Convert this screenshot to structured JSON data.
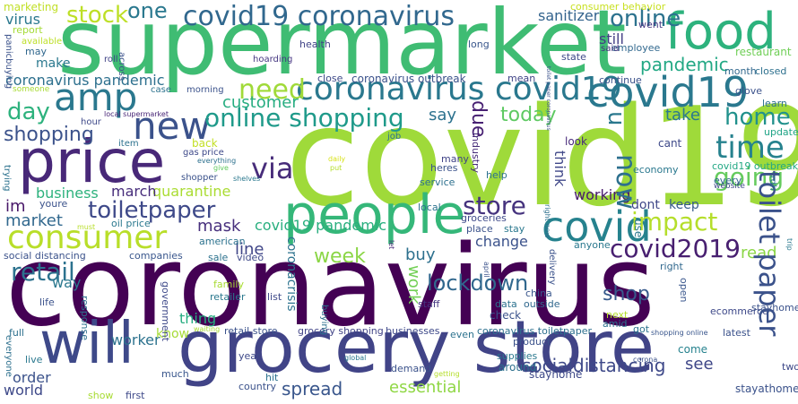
{
  "words": [
    {
      "text": "supermarket",
      "color": "#3fbc73"
    },
    {
      "text": "covid19",
      "color": "#9fda3a"
    },
    {
      "text": "coronavirus",
      "color": "#440154"
    },
    {
      "text": "grocery store",
      "color": "#414487"
    },
    {
      "text": "people",
      "color": "#35b779"
    },
    {
      "text": "price",
      "color": "#482878"
    },
    {
      "text": "food",
      "color": "#2db27d"
    },
    {
      "text": "will",
      "color": "#3e4989"
    },
    {
      "text": "coronavirus covid19",
      "color": "#2a788e"
    },
    {
      "text": "consumer",
      "color": "#b8de29"
    },
    {
      "text": "covid19 coronavirus",
      "color": "#31688e"
    },
    {
      "text": "amp",
      "color": "#2a788e"
    },
    {
      "text": "new",
      "color": "#3b528b"
    },
    {
      "text": "covid",
      "color": "#26828e"
    },
    {
      "text": "online shopping",
      "color": "#1f9a8a"
    },
    {
      "text": "need",
      "color": "#a0da39"
    },
    {
      "text": "stock",
      "color": "#bddf26"
    },
    {
      "text": "online",
      "color": "#2c728e"
    },
    {
      "text": "toilet paper",
      "color": "#3b528b"
    },
    {
      "text": "covid2019",
      "color": "#481f70"
    },
    {
      "text": "time",
      "color": "#26828e"
    },
    {
      "text": "home",
      "color": "#21918c"
    },
    {
      "text": "going",
      "color": "#65cb5e"
    },
    {
      "text": "store",
      "color": "#46337e"
    },
    {
      "text": "retail",
      "color": "#2c728e"
    },
    {
      "text": "toiletpaper",
      "color": "#3e4989"
    },
    {
      "text": "now",
      "color": "#2d708e"
    },
    {
      "text": "via",
      "color": "#472c7a"
    },
    {
      "text": "impact",
      "color": "#b5de2b"
    },
    {
      "text": "u",
      "color": "#2a788e"
    },
    {
      "text": "due",
      "color": "#482173"
    },
    {
      "text": "day",
      "color": "#2db27d"
    },
    {
      "text": "shopping",
      "color": "#3b528b"
    },
    {
      "text": "one",
      "color": "#2a788e"
    },
    {
      "text": "pandemic",
      "color": "#22a884"
    },
    {
      "text": "customer",
      "color": "#27ad81"
    },
    {
      "text": "today",
      "color": "#5ec962"
    },
    {
      "text": "work",
      "color": "#73d056"
    },
    {
      "text": "lockdown",
      "color": "#31688e"
    },
    {
      "text": "week",
      "color": "#8bd646"
    },
    {
      "text": "shop",
      "color": "#375a8c"
    },
    {
      "text": "spread",
      "color": "#39568c"
    },
    {
      "text": "socialdistancing",
      "color": "#3e4989"
    },
    {
      "text": "covid19 pandemic",
      "color": "#29af7f"
    },
    {
      "text": "quarantine",
      "color": "#aadc32"
    },
    {
      "text": "market",
      "color": "#31688e"
    },
    {
      "text": "mask",
      "color": "#472f7d"
    },
    {
      "text": "line",
      "color": "#404688"
    },
    {
      "text": "business",
      "color": "#2db27d"
    },
    {
      "text": "march",
      "color": "#472d7b"
    },
    {
      "text": "im",
      "color": "#481769"
    },
    {
      "text": "coronavirus pandemic",
      "color": "#2d708e"
    },
    {
      "text": "virus",
      "color": "#2a788e"
    },
    {
      "text": "sanitizer",
      "color": "#33638d"
    },
    {
      "text": "say",
      "color": "#2c728e"
    },
    {
      "text": "take",
      "color": "#2a788e"
    },
    {
      "text": "still",
      "color": "#433e85"
    },
    {
      "text": "make",
      "color": "#2a788e"
    },
    {
      "text": "coronavirus outbreak",
      "color": "#3b528b"
    },
    {
      "text": "essential",
      "color": "#8fd744"
    },
    {
      "text": "read",
      "color": "#8bd646"
    },
    {
      "text": "see",
      "color": "#3f4788"
    },
    {
      "text": "buy",
      "color": "#2d708e"
    },
    {
      "text": "change",
      "color": "#3b528b"
    },
    {
      "text": "dont",
      "color": "#3f4788"
    },
    {
      "text": "keep",
      "color": "#375a8c"
    },
    {
      "text": "working",
      "color": "#481b6d"
    },
    {
      "text": "thing",
      "color": "#27ad81"
    },
    {
      "text": "worker",
      "color": "#2c728e"
    },
    {
      "text": "order",
      "color": "#3b528b"
    },
    {
      "text": "world",
      "color": "#3e4989"
    },
    {
      "text": "know",
      "color": "#a5db36"
    },
    {
      "text": "way",
      "color": "#2a788e"
    },
    {
      "text": "think",
      "color": "#3f4788"
    },
    {
      "text": "use",
      "color": "#2a788e"
    },
    {
      "text": "stayathome",
      "color": "#3b528b"
    },
    {
      "text": "stayhome",
      "color": "#3e4989"
    },
    {
      "text": "coronacrisis",
      "color": "#2c728e"
    },
    {
      "text": "cant",
      "color": "#3e4989"
    },
    {
      "text": "look",
      "color": "#472a7a"
    },
    {
      "text": "come",
      "color": "#26828e"
    },
    {
      "text": "restaurant",
      "color": "#70cf57"
    },
    {
      "text": "marketing",
      "color": "#c0df25"
    },
    {
      "text": "report",
      "color": "#a5db36"
    },
    {
      "text": "may",
      "color": "#31688e"
    },
    {
      "text": "available",
      "color": "#bddf26"
    },
    {
      "text": "health",
      "color": "#414487"
    },
    {
      "text": "long",
      "color": "#39568c"
    },
    {
      "text": "state",
      "color": "#3e4989"
    },
    {
      "text": "employee",
      "color": "#31688e"
    },
    {
      "text": "said",
      "color": "#46327e"
    },
    {
      "text": "went",
      "color": "#453781"
    },
    {
      "text": "consumer behavior",
      "color": "#c8e020"
    },
    {
      "text": "continue",
      "color": "#3b528b"
    },
    {
      "text": "month",
      "color": "#31688e"
    },
    {
      "text": "closed",
      "color": "#2d708e"
    },
    {
      "text": "mean",
      "color": "#414487"
    },
    {
      "text": "glove",
      "color": "#3b528b"
    },
    {
      "text": "learn",
      "color": "#2d708e"
    },
    {
      "text": "update",
      "color": "#20a486"
    },
    {
      "text": "economy",
      "color": "#2a788e"
    },
    {
      "text": "every",
      "color": "#31688e"
    },
    {
      "text": "website",
      "color": "#3e4989"
    },
    {
      "text": "covid19 outbreak",
      "color": "#22a884"
    },
    {
      "text": "roll",
      "color": "#414487"
    },
    {
      "text": "hoarding",
      "color": "#453781"
    },
    {
      "text": "close",
      "color": "#3e4989"
    },
    {
      "text": "case",
      "color": "#2c728e"
    },
    {
      "text": "morning",
      "color": "#3b528b"
    },
    {
      "text": "hour",
      "color": "#3e4989"
    },
    {
      "text": "panicbuying",
      "color": "#3b528b"
    },
    {
      "text": "someone",
      "color": "#a8db34"
    },
    {
      "text": "item",
      "color": "#2c728e"
    },
    {
      "text": "local supermarket",
      "color": "#482576"
    },
    {
      "text": "across",
      "color": "#3b528b"
    },
    {
      "text": "job",
      "color": "#2c728e"
    },
    {
      "text": "industry",
      "color": "#472c7a"
    },
    {
      "text": "back",
      "color": "#c2df23"
    },
    {
      "text": "gas price",
      "color": "#3e4989"
    },
    {
      "text": "everything",
      "color": "#2d708e"
    },
    {
      "text": "give",
      "color": "#63cb5f"
    },
    {
      "text": "shopper",
      "color": "#3b528b"
    },
    {
      "text": "shelves",
      "color": "#2a788e"
    },
    {
      "text": "put",
      "color": "#b5de2b"
    },
    {
      "text": "daily",
      "color": "#d8e219"
    },
    {
      "text": "many",
      "color": "#414487"
    },
    {
      "text": "heres",
      "color": "#3b528b"
    },
    {
      "text": "help",
      "color": "#2c728e"
    },
    {
      "text": "service",
      "color": "#2d708e"
    },
    {
      "text": "local",
      "color": "#2c728e"
    },
    {
      "text": "groceries",
      "color": "#3e4989"
    },
    {
      "text": "place",
      "color": "#3b528b"
    },
    {
      "text": "stay",
      "color": "#2a788e"
    },
    {
      "text": "youre",
      "color": "#3b528b"
    },
    {
      "text": "oil price",
      "color": "#2a788e"
    },
    {
      "text": "must",
      "color": "#b8de29"
    },
    {
      "text": "american",
      "color": "#2c728e"
    },
    {
      "text": "social distancing",
      "color": "#3b528b"
    },
    {
      "text": "companies",
      "color": "#39568c"
    },
    {
      "text": "sale",
      "color": "#2c728e"
    },
    {
      "text": "video",
      "color": "#3e4989"
    },
    {
      "text": "trying",
      "color": "#2c728e"
    },
    {
      "text": "let",
      "color": "#482878"
    },
    {
      "text": "anyone",
      "color": "#2a788e"
    },
    {
      "text": "april",
      "color": "#3b528b"
    },
    {
      "text": "delivery",
      "color": "#3b528b"
    },
    {
      "text": "right",
      "color": "#31688e"
    },
    {
      "text": "open",
      "color": "#39568c"
    },
    {
      "text": "family",
      "color": "#a8db34"
    },
    {
      "text": "retailer",
      "color": "#2a788e"
    },
    {
      "text": "list",
      "color": "#3e4989"
    },
    {
      "text": "response",
      "color": "#2d708e"
    },
    {
      "text": "life",
      "color": "#3b528b"
    },
    {
      "text": "government",
      "color": "#3e4989"
    },
    {
      "text": "staff",
      "color": "#453781"
    },
    {
      "text": "buying",
      "color": "#2d708e"
    },
    {
      "text": "data",
      "color": "#2c728e"
    },
    {
      "text": "outside",
      "color": "#31688e"
    },
    {
      "text": "china",
      "color": "#39568c"
    },
    {
      "text": "check",
      "color": "#3b528b"
    },
    {
      "text": "next",
      "color": "#b5de2b"
    },
    {
      "text": "amid",
      "color": "#2c728e"
    },
    {
      "text": "ecommerce",
      "color": "#3e4989"
    },
    {
      "text": "stayhomesavelives",
      "color": "#3b528b"
    },
    {
      "text": "full",
      "color": "#2d708e"
    },
    {
      "text": "waiting",
      "color": "#a8db34"
    },
    {
      "text": "retail store",
      "color": "#3b528b"
    },
    {
      "text": "grocery shopping",
      "color": "#414487"
    },
    {
      "text": "businesses",
      "color": "#3e4989"
    },
    {
      "text": "even",
      "color": "#2c728e"
    },
    {
      "text": "coronavirus toiletpaper",
      "color": "#2d708e"
    },
    {
      "text": "product",
      "color": "#3b528b"
    },
    {
      "text": "supplies",
      "color": "#2a788e"
    },
    {
      "text": "got",
      "color": "#2c728e"
    },
    {
      "text": "shopping online",
      "color": "#39568c"
    },
    {
      "text": "latest",
      "color": "#3b528b"
    },
    {
      "text": "everyone",
      "color": "#2d708e"
    },
    {
      "text": "live",
      "color": "#2a788e"
    },
    {
      "text": "year",
      "color": "#3e4989"
    },
    {
      "text": "global",
      "color": "#2a788e"
    },
    {
      "text": "demand",
      "color": "#3b528b"
    },
    {
      "text": "getting",
      "color": "#b5de2b"
    },
    {
      "text": "around",
      "color": "#2d708e"
    },
    {
      "text": "corona",
      "color": "#3b528b"
    },
    {
      "text": "trip",
      "color": "#2a788e"
    },
    {
      "text": "two",
      "color": "#3e4989"
    },
    {
      "text": "much",
      "color": "#39568c"
    },
    {
      "text": "hit",
      "color": "#2c728e"
    },
    {
      "text": "country",
      "color": "#3b528b"
    },
    {
      "text": "show",
      "color": "#a8db34"
    },
    {
      "text": "first",
      "color": "#3e4989"
    },
    {
      "text": "rdh",
      "color": "#2c728e"
    },
    {
      "text": "toilet paper coronavirus",
      "color": "#3b528b"
    },
    {
      "text": "right now",
      "color": "#2d708e"
    }
  ]
}
